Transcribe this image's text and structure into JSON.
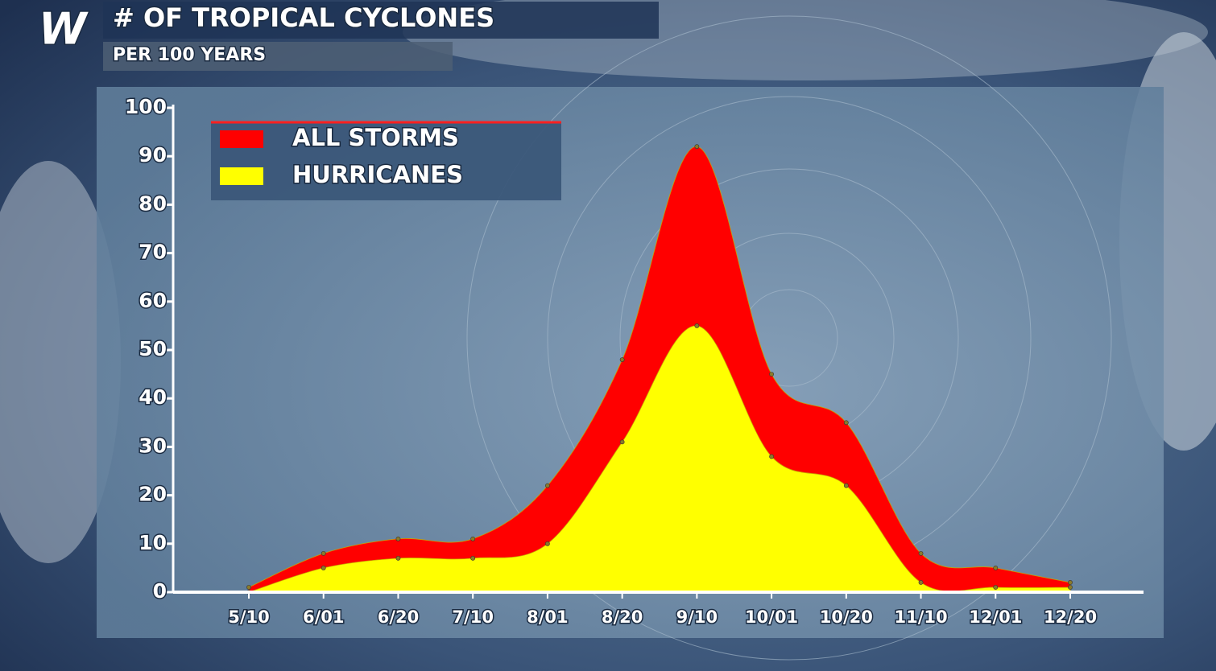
{
  "logo": "W",
  "chart_data": {
    "type": "area",
    "title": "# OF TROPICAL CYCLONES",
    "subtitle": "PER 100 YEARS",
    "categories": [
      "5/10",
      "6/01",
      "6/20",
      "7/10",
      "8/01",
      "8/20",
      "9/10",
      "10/01",
      "10/20",
      "11/10",
      "12/01",
      "12/20"
    ],
    "series": [
      {
        "name": "ALL STORMS",
        "color": "#ff0000",
        "values": [
          1,
          8,
          11,
          11,
          22,
          48,
          92,
          45,
          35,
          8,
          5,
          2
        ]
      },
      {
        "name": "HURRICANES",
        "color": "#ffff00",
        "values": [
          0,
          5,
          7,
          7,
          10,
          31,
          55,
          28,
          22,
          2,
          1,
          1
        ]
      }
    ],
    "ylim": [
      0,
      100
    ],
    "yticks": [
      0,
      10,
      20,
      30,
      40,
      50,
      60,
      70,
      80,
      90,
      100
    ],
    "legend": "top-left"
  }
}
